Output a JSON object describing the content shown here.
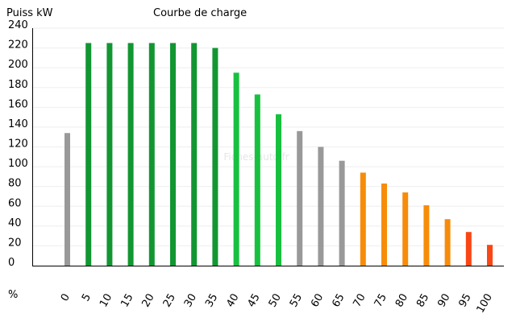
{
  "chart_data": {
    "type": "bar",
    "title": "Courbe de charge",
    "ylabel": "Puiss kW",
    "xlabel": "%",
    "watermark": "Fiches-auto.fr",
    "ylim": [
      0,
      240
    ],
    "yticks": [
      0,
      20,
      40,
      60,
      80,
      100,
      120,
      140,
      160,
      180,
      200,
      220,
      240
    ],
    "grid": true,
    "categories": [
      "0",
      "5",
      "10",
      "15",
      "20",
      "25",
      "30",
      "35",
      "40",
      "45",
      "50",
      "55",
      "60",
      "65",
      "70",
      "75",
      "80",
      "85",
      "90",
      "95",
      "100"
    ],
    "values": [
      134,
      225,
      225,
      225,
      225,
      225,
      225,
      220,
      195,
      173,
      153,
      136,
      120,
      106,
      94,
      83,
      74,
      61,
      47,
      34,
      21
    ],
    "bar_colors": [
      "#999999",
      "#129632",
      "#129632",
      "#129632",
      "#129632",
      "#129632",
      "#129632",
      "#129632",
      "#18c040",
      "#18c040",
      "#18c040",
      "#999999",
      "#999999",
      "#999999",
      "#f78c0a",
      "#f78c0a",
      "#f78c0a",
      "#f78c0a",
      "#f78c0a",
      "#fa4614",
      "#fa4614"
    ]
  }
}
